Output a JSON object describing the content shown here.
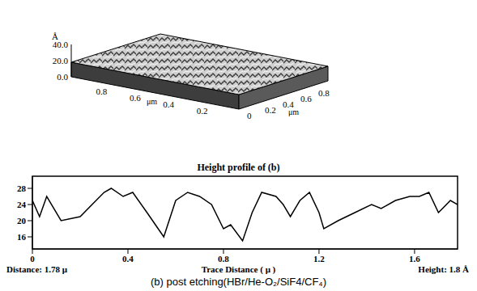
{
  "surface_3d": {
    "z_unit": "Å",
    "zlim": [
      0,
      40
    ],
    "z_ticks": [
      {
        "value": 40,
        "label": "40.0"
      },
      {
        "value": 20,
        "label": "20.0"
      },
      {
        "value": 0,
        "label": "0.0"
      }
    ],
    "x_unit": "μm",
    "xlim": [
      0,
      1
    ],
    "x_ticks": [
      0.8,
      0.6,
      0.4,
      0.2
    ],
    "y_unit": "μm",
    "ylim": [
      0,
      1
    ],
    "y_ticks": [
      0,
      0.2,
      0.4,
      0.6,
      0.8
    ]
  },
  "chart_data": {
    "type": "line",
    "title": "Height profile of (b)",
    "x_label": "Trace Distance ( μ )",
    "x": [
      0,
      0.03,
      0.06,
      0.12,
      0.2,
      0.3,
      0.33,
      0.38,
      0.42,
      0.48,
      0.55,
      0.6,
      0.65,
      0.7,
      0.75,
      0.8,
      0.83,
      0.88,
      0.92,
      0.96,
      1.02,
      1.05,
      1.08,
      1.12,
      1.16,
      1.2,
      1.22,
      1.28,
      1.35,
      1.42,
      1.46,
      1.52,
      1.58,
      1.62,
      1.66,
      1.7,
      1.75,
      1.78
    ],
    "values": [
      25,
      21,
      26,
      20,
      21,
      27,
      28,
      26,
      27,
      22,
      16,
      25,
      27,
      26,
      24,
      18,
      19,
      15,
      22,
      27,
      26,
      24,
      21,
      25,
      27,
      22,
      18,
      20,
      22,
      24,
      23,
      25,
      26,
      26,
      27,
      22,
      25,
      24
    ],
    "color": "#000000",
    "xlim": [
      0,
      1.78
    ],
    "xticks": [
      0,
      0.4,
      0.8,
      1.2,
      1.6
    ],
    "ylim": [
      13,
      31
    ],
    "yticks": [
      16,
      20,
      24,
      28
    ],
    "grid": false,
    "annotations": [
      "Distance: 1.78 μ",
      "Height: 1.8 Å"
    ]
  },
  "caption": "(b) post etching(HBr/He-O₂/SiF4/CF₄)"
}
